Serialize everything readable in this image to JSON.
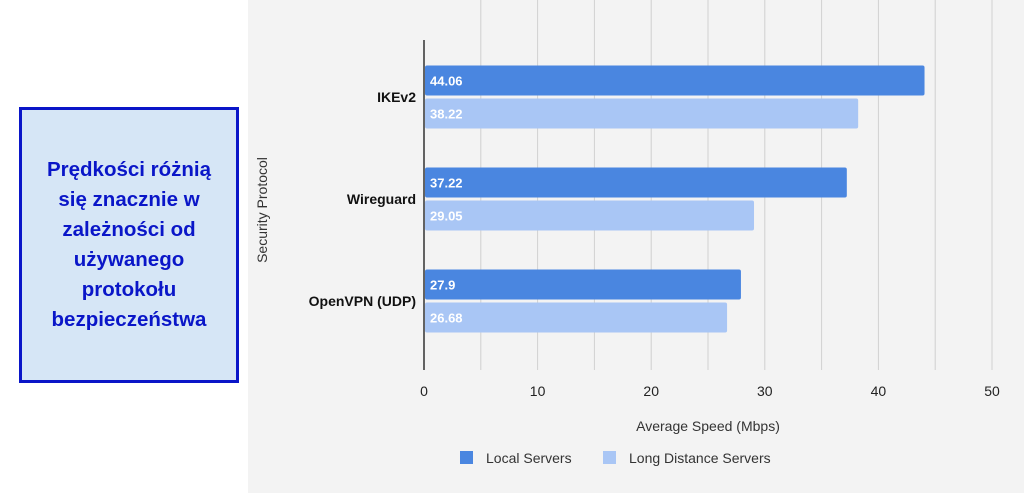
{
  "callout": {
    "text": "Prędkości różnią\nsię znacznie w\nzależności od\nużywanego\nprotokołu\nbezpieczeństwa"
  },
  "chart_data": {
    "type": "bar",
    "orientation": "horizontal",
    "categories": [
      "IKEv2",
      "Wireguard",
      "OpenVPN (UDP)"
    ],
    "series": [
      {
        "name": "Local Servers",
        "values": [
          44.06,
          37.22,
          27.9
        ],
        "color": "#4a86e0"
      },
      {
        "name": "Long Distance Servers",
        "values": [
          38.22,
          29.05,
          26.68
        ],
        "color": "#a9c6f5"
      }
    ],
    "data_labels": [
      [
        "44.06",
        "37.22",
        "27.9"
      ],
      [
        "38.22",
        "29.05",
        "26.68"
      ]
    ],
    "xlabel": "Average Speed (Mbps)",
    "ylabel": "Security Protocol",
    "xlim": [
      0,
      50
    ],
    "xticks": [
      0,
      10,
      20,
      30,
      40,
      50
    ],
    "xtick_labels": [
      "0",
      "10",
      "20",
      "30",
      "40",
      "50"
    ],
    "grid": true,
    "legend_position": "bottom"
  }
}
